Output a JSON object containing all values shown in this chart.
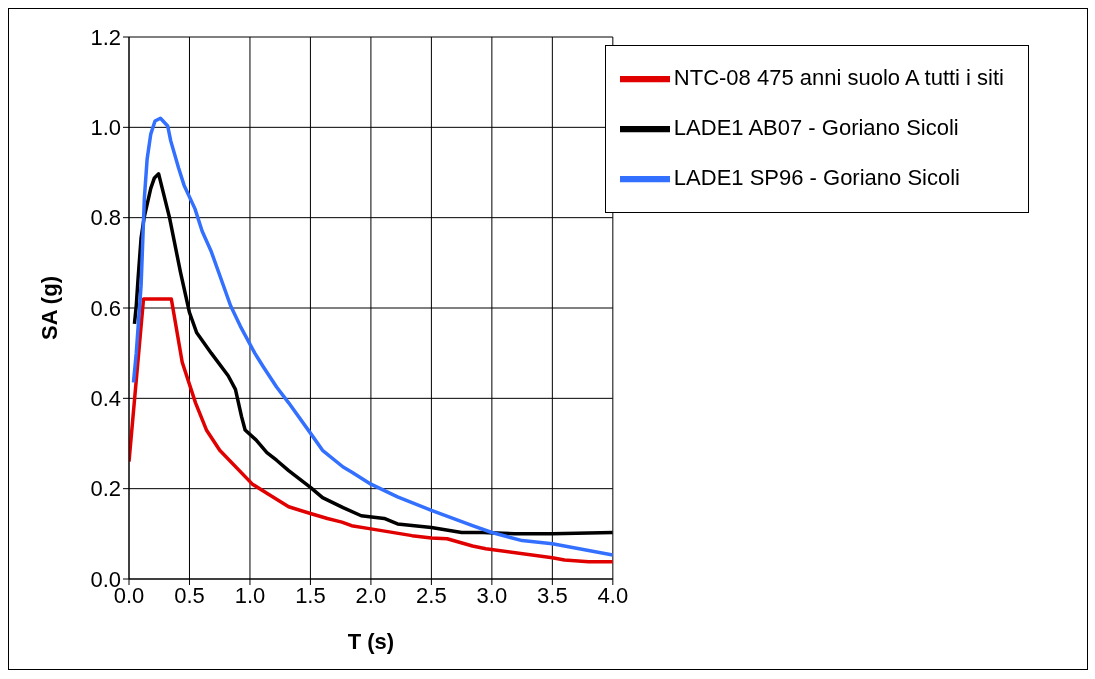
{
  "chart_data": {
    "type": "line",
    "xlabel": "T (s)",
    "ylabel": "SA (g)",
    "xlim": [
      0,
      4
    ],
    "xticks": [
      {
        "value": 0,
        "label": "0.0"
      },
      {
        "value": 0.5,
        "label": "0.5"
      },
      {
        "value": 1,
        "label": "1.0"
      },
      {
        "value": 1.5,
        "label": "1.5"
      },
      {
        "value": 2,
        "label": "2.0"
      },
      {
        "value": 2.5,
        "label": "2.5"
      },
      {
        "value": 3,
        "label": "3.0"
      },
      {
        "value": 3.5,
        "label": "3.5"
      },
      {
        "value": 4,
        "label": "4.0"
      }
    ],
    "ylim": [
      0,
      1.2
    ],
    "yticks": [
      {
        "value": 0,
        "label": "0.0"
      },
      {
        "value": 0.2,
        "label": "0.2"
      },
      {
        "value": 0.4,
        "label": "0.4"
      },
      {
        "value": 0.6,
        "label": "0.6"
      },
      {
        "value": 0.8,
        "label": "0.8"
      },
      {
        "value": 1,
        "label": "1.0"
      },
      {
        "value": 1.2,
        "label": "1.2"
      }
    ],
    "grid": true,
    "legend": "top right",
    "marker": "none",
    "line_style": "solid",
    "series": [
      {
        "name": "NTC-08 475 anni suolo A tutti i siti",
        "color": "#e00000",
        "x": [
          0,
          0.12,
          0.35,
          0.44,
          0.55,
          0.64,
          0.75,
          1.02,
          1.14,
          1.32,
          1.5,
          1.64,
          1.76,
          1.84,
          2.0,
          2.34,
          2.5,
          2.63,
          2.84,
          2.95,
          3.5,
          3.6,
          3.8,
          4.0
        ],
        "values": [
          0.26,
          0.62,
          0.62,
          0.48,
          0.39,
          0.33,
          0.285,
          0.21,
          0.19,
          0.16,
          0.145,
          0.134,
          0.126,
          0.118,
          0.111,
          0.096,
          0.091,
          0.089,
          0.073,
          0.067,
          0.047,
          0.042,
          0.038,
          0.038
        ]
      },
      {
        "name": "LADE1 AB07 - Goriano Sicoli",
        "color": "#000000",
        "x": [
          0.045,
          0.06,
          0.075,
          0.1,
          0.125,
          0.18,
          0.21,
          0.245,
          0.335,
          0.425,
          0.5,
          0.56,
          0.68,
          0.82,
          0.88,
          0.93,
          0.96,
          1.05,
          1.14,
          1.22,
          1.32,
          1.5,
          1.6,
          1.77,
          1.92,
          2.11,
          2.22,
          2.5,
          2.75,
          2.93,
          3.19,
          3.5,
          4.0
        ],
        "values": [
          0.565,
          0.605,
          0.665,
          0.755,
          0.8,
          0.865,
          0.888,
          0.897,
          0.8,
          0.68,
          0.59,
          0.545,
          0.5,
          0.45,
          0.42,
          0.36,
          0.33,
          0.308,
          0.28,
          0.263,
          0.24,
          0.203,
          0.18,
          0.158,
          0.14,
          0.134,
          0.122,
          0.114,
          0.103,
          0.103,
          0.1,
          0.1,
          0.103
        ]
      },
      {
        "name": "LADE1 SP96 - Goriano Sicoli",
        "color": "#3370ff",
        "x": [
          0.037,
          0.06,
          0.1,
          0.127,
          0.15,
          0.18,
          0.215,
          0.26,
          0.32,
          0.345,
          0.41,
          0.455,
          0.545,
          0.605,
          0.68,
          0.84,
          0.92,
          1.04,
          1.11,
          1.22,
          1.32,
          1.5,
          1.6,
          1.77,
          1.84,
          2.0,
          2.22,
          2.5,
          2.84,
          3.0,
          3.25,
          3.5,
          4.0
        ],
        "values": [
          0.435,
          0.5,
          0.65,
          0.843,
          0.93,
          0.985,
          1.014,
          1.02,
          1.003,
          0.97,
          0.91,
          0.872,
          0.82,
          0.77,
          0.725,
          0.605,
          0.56,
          0.5,
          0.47,
          0.425,
          0.39,
          0.323,
          0.285,
          0.248,
          0.237,
          0.21,
          0.182,
          0.152,
          0.118,
          0.103,
          0.085,
          0.078,
          0.053
        ]
      }
    ]
  }
}
